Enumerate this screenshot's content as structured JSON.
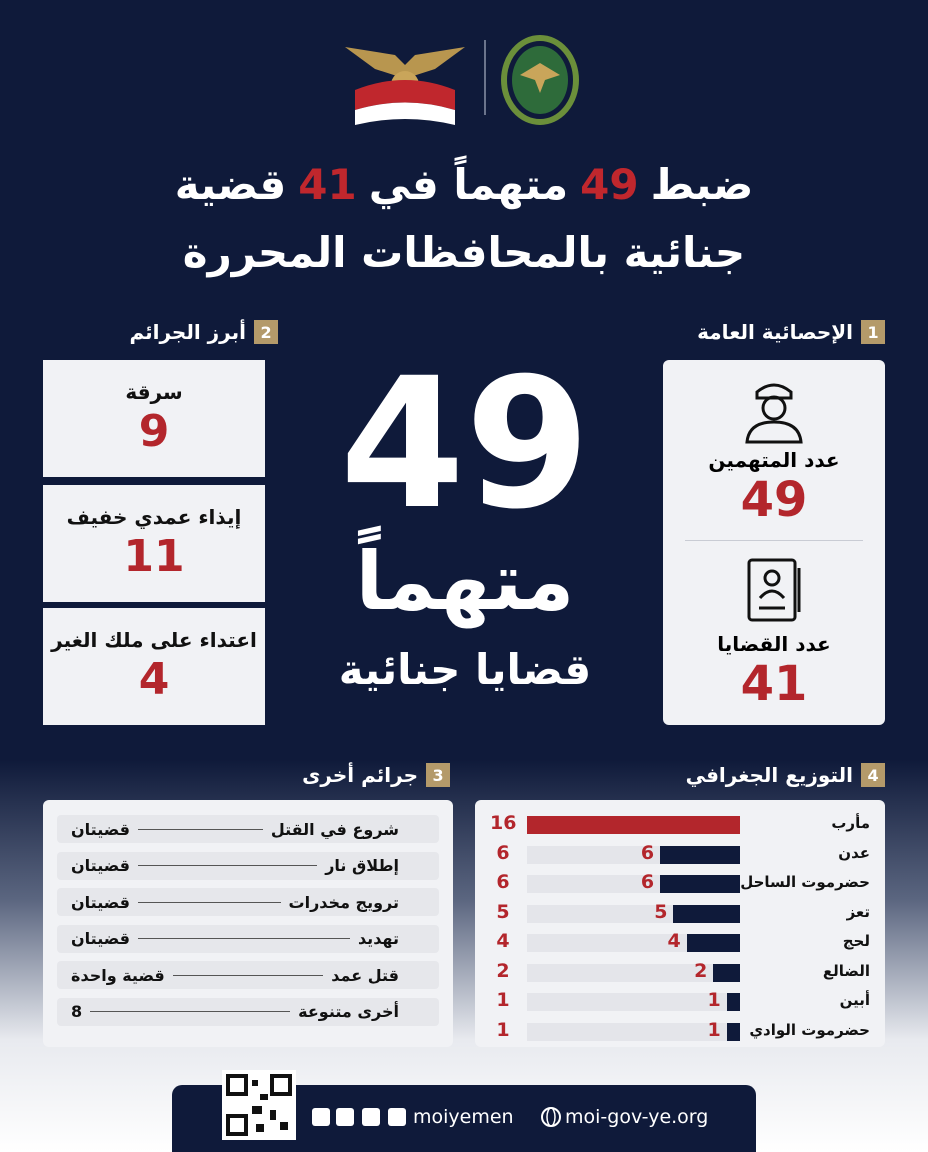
{
  "header": {
    "title_line1": [
      "ضبط",
      "49",
      "متهماً في",
      "41",
      "قضية"
    ],
    "title_line2": "جنائية بالمحافظات المحررة"
  },
  "general_stats": {
    "number": "1",
    "title": "الإحصائية العامة",
    "items": [
      {
        "label": "عدد المتهمين",
        "value": 49
      },
      {
        "label": "عدد القضايا",
        "value": 41
      }
    ]
  },
  "center": {
    "number": "49",
    "word": "متهماً",
    "subtitle": "قضايا جنائية"
  },
  "top_crimes": {
    "number": "2",
    "title": "أبرز الجرائم",
    "items": [
      {
        "label": "سرقة",
        "value": 9
      },
      {
        "label": "إيذاء عمدي خفيف",
        "value": 11
      },
      {
        "label": "اعتداء على ملك الغير",
        "value": 4
      }
    ]
  },
  "other_crimes": {
    "number": "3",
    "title": "جرائم أخرى",
    "rows": [
      [
        "شروع في القتل",
        "قضيتان"
      ],
      [
        "إطلاق نار",
        "قضيتان"
      ],
      [
        "ترويج مخدرات",
        "قضيتان"
      ],
      [
        "تهديد",
        "قضيتان"
      ],
      [
        "قتل عمد",
        "قضية واحدة"
      ],
      [
        "أخرى متنوعة",
        "8"
      ]
    ]
  },
  "geo": {
    "number": "4",
    "title": "التوزيع الجغرافي",
    "chart_data": {
      "type": "bar",
      "categories": [
        "مأرب",
        "عدن",
        "حضرموت الساحل",
        "تعز",
        "لحج",
        "الضالع",
        "أبين",
        "حضرموت الوادي"
      ],
      "values": [
        16,
        6,
        6,
        5,
        4,
        2,
        1,
        1
      ],
      "colors": [
        "#b3262c",
        "#0f1a3a",
        "#0f1a3a",
        "#0f1a3a",
        "#0f1a3a",
        "#0f1a3a",
        "#0f1a3a",
        "#0f1a3a"
      ]
    }
  },
  "footer": {
    "social": "moiyemen",
    "website": "moi-gov-ye.org"
  }
}
